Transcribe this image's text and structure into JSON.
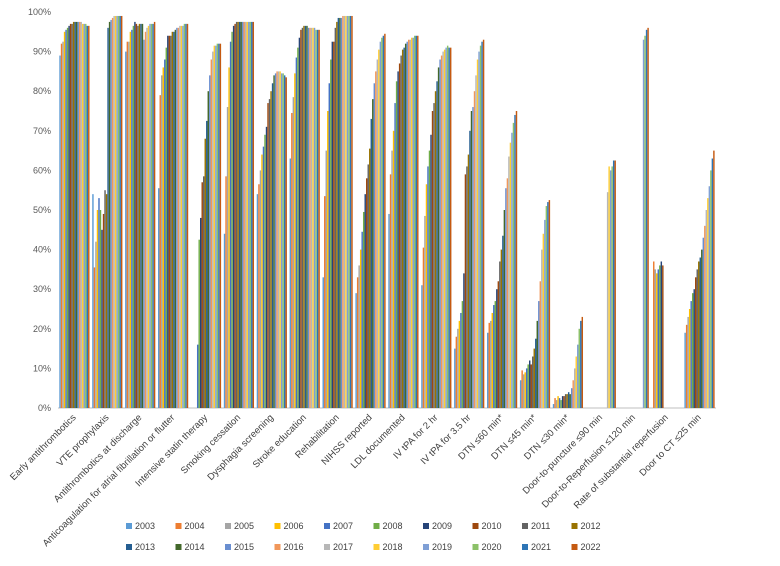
{
  "chart_data": {
    "type": "bar",
    "ylim": [
      0,
      100
    ],
    "y_unit": "%",
    "y_ticks": [
      "0%",
      "10%",
      "20%",
      "30%",
      "40%",
      "50%",
      "60%",
      "70%",
      "80%",
      "90%",
      "100%"
    ],
    "grid": false,
    "legend_position": "bottom",
    "categories": [
      "Early antithrombotics",
      "VTE prophylaxis",
      "Antithrombotics at discharge",
      "Anticoagulation for atrial fibrillation or flutter",
      "Intensive statin therapy",
      "Smoking cessation",
      "Dysphagia screening",
      "Stroke education",
      "Rehabilitation",
      "NIHSS reported",
      "LDL documented",
      "IV tPA for 2 hr",
      "IV tPA for 3.5 hr",
      "DTN ≤60 min*",
      "DTN ≤45 min*",
      "DTN ≤30 min*",
      "Door-to-puncture ≤90 min",
      "Door-to-Reperfusion ≤120 min",
      "Rate of substantial reperfusion",
      "Door to CT ≤25 min"
    ],
    "series": [
      {
        "name": "2003",
        "color": "#5b9bd5",
        "values": [
          89,
          54,
          90,
          55.5,
          null,
          44,
          54,
          63,
          33,
          29,
          49,
          31,
          15,
          19,
          7,
          1,
          null,
          null,
          null,
          19
        ]
      },
      {
        "name": "2004",
        "color": "#ed7d31",
        "values": [
          92,
          35.5,
          92.5,
          79,
          null,
          58.5,
          56.5,
          74.5,
          53.5,
          33,
          59,
          40.5,
          18,
          21.5,
          9.5,
          2.5,
          null,
          null,
          37,
          21
        ]
      },
      {
        "name": "2005",
        "color": "#a5a5a5",
        "values": [
          92.5,
          42,
          92.5,
          84,
          null,
          76,
          60,
          78.5,
          65,
          36,
          65,
          48.5,
          20,
          22,
          8.5,
          2,
          null,
          null,
          35,
          23
        ]
      },
      {
        "name": "2006",
        "color": "#ffc000",
        "values": [
          95,
          50,
          95,
          86,
          null,
          86,
          64,
          84.5,
          75,
          40,
          70,
          56.5,
          22,
          24,
          9,
          3,
          null,
          null,
          34,
          25
        ]
      },
      {
        "name": "2007",
        "color": "#4472c4",
        "values": [
          95.5,
          53,
          95.5,
          88,
          16,
          92.5,
          66,
          88.5,
          82,
          44.5,
          77,
          61,
          24,
          26,
          10,
          2.5,
          null,
          null,
          35,
          27
        ]
      },
      {
        "name": "2008",
        "color": "#70ad47",
        "values": [
          96,
          50,
          96.5,
          91,
          42.5,
          95,
          69,
          91,
          88,
          49.5,
          82.5,
          65,
          27,
          27,
          11,
          2,
          null,
          null,
          36,
          29
        ]
      },
      {
        "name": "2009",
        "color": "#264478",
        "values": [
          96.5,
          45,
          97.5,
          94,
          48,
          96.5,
          71,
          93.5,
          92.5,
          54,
          85,
          69,
          34,
          30,
          12,
          3,
          null,
          null,
          37,
          30
        ]
      },
      {
        "name": "2010",
        "color": "#9e480e",
        "values": [
          97,
          49,
          97,
          94,
          57,
          97,
          77,
          95.5,
          92.5,
          58,
          87,
          75,
          59,
          32,
          11,
          3,
          null,
          null,
          36,
          33
        ]
      },
      {
        "name": "2011",
        "color": "#636363",
        "values": [
          97,
          55,
          96.5,
          94,
          58.5,
          97.5,
          78,
          96,
          96,
          61.5,
          89,
          77,
          61,
          37,
          13,
          3.5,
          null,
          null,
          null,
          35
        ]
      },
      {
        "name": "2012",
        "color": "#997300",
        "values": [
          97.5,
          54,
          97,
          95,
          68,
          97.5,
          80,
          96.5,
          97.5,
          65.5,
          90.5,
          80,
          64,
          40,
          15,
          3.5,
          null,
          null,
          null,
          37
        ]
      },
      {
        "name": "2013",
        "color": "#255e91",
        "values": [
          97.5,
          96,
          97,
          95,
          72.5,
          97.5,
          82,
          96.5,
          98.5,
          73,
          91,
          82.5,
          70,
          43.5,
          17.5,
          4,
          null,
          null,
          null,
          38
        ]
      },
      {
        "name": "2014",
        "color": "#43682b",
        "values": [
          97.5,
          97.5,
          97,
          95.5,
          80,
          97.5,
          84,
          96.5,
          98.5,
          78,
          92,
          86,
          75,
          50,
          22,
          3.5,
          null,
          null,
          null,
          40
        ]
      },
      {
        "name": "2015",
        "color": "#698ed0",
        "values": [
          97.5,
          98,
          93,
          96,
          84,
          97.5,
          84.5,
          96,
          98.5,
          82,
          92.5,
          88,
          76,
          55.5,
          27,
          5,
          null,
          null,
          null,
          43
        ]
      },
      {
        "name": "2016",
        "color": "#f1975a",
        "values": [
          97.5,
          98.5,
          95,
          96,
          88,
          97.5,
          85,
          96,
          99,
          85,
          93,
          89,
          80,
          58,
          32,
          7,
          null,
          null,
          null,
          46
        ]
      },
      {
        "name": "2017",
        "color": "#b7b7b7",
        "values": [
          97.5,
          99,
          96,
          96.5,
          90,
          97.5,
          85,
          96,
          99,
          88,
          93,
          90,
          84,
          63.5,
          40,
          10,
          54.5,
          null,
          null,
          50
        ]
      },
      {
        "name": "2018",
        "color": "#ffcd33",
        "values": [
          97,
          99,
          96.5,
          96.5,
          91.5,
          97.5,
          85,
          96,
          99,
          90.5,
          93.5,
          90.5,
          88,
          67,
          44,
          13,
          61,
          null,
          null,
          53
        ]
      },
      {
        "name": "2019",
        "color": "#7f9fd5",
        "values": [
          97,
          99,
          97,
          96.5,
          91.5,
          97.5,
          84.5,
          96,
          99,
          92.5,
          93.5,
          91,
          90,
          69.5,
          47.5,
          16,
          60,
          93,
          null,
          56
        ]
      },
      {
        "name": "2020",
        "color": "#8cc168",
        "values": [
          97,
          99,
          97,
          97,
          92,
          97.5,
          84.5,
          95.5,
          99,
          93.5,
          94,
          91.5,
          91.5,
          72,
          51,
          20,
          61,
          94,
          null,
          60
        ]
      },
      {
        "name": "2021",
        "color": "#2e75b6",
        "values": [
          96.5,
          99,
          97,
          97,
          92,
          97.5,
          84,
          95.5,
          99,
          94,
          94,
          91,
          92.5,
          74,
          52,
          22,
          62.5,
          95.5,
          null,
          63
        ]
      },
      {
        "name": "2022",
        "color": "#c55a11",
        "values": [
          96.5,
          99,
          97.5,
          97,
          92,
          97.5,
          83.5,
          95.5,
          99,
          94.5,
          94,
          91,
          93,
          75,
          52.5,
          23,
          62.5,
          96,
          null,
          65
        ]
      }
    ]
  }
}
